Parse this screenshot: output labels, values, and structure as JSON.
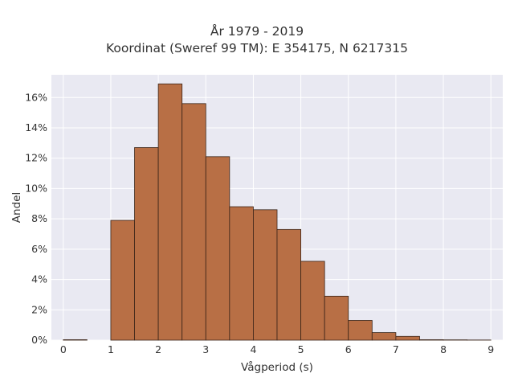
{
  "chart_data": {
    "type": "bar",
    "title": "År 1979 - 2019",
    "subtitle": "Koordinat (Sweref 99 TM): E 354175, N 6217315",
    "xlabel": "Vågperiod (s)",
    "ylabel": "Andel",
    "xlim": [
      -0.25,
      9.25
    ],
    "ylim": [
      0,
      0.175
    ],
    "x_ticks": [
      0,
      1,
      2,
      3,
      4,
      5,
      6,
      7,
      8,
      9
    ],
    "y_ticks": [
      0,
      0.02,
      0.04,
      0.06,
      0.08,
      0.1,
      0.12,
      0.14,
      0.16
    ],
    "y_tick_labels": [
      "0%",
      "2%",
      "4%",
      "6%",
      "8%",
      "10%",
      "12%",
      "14%",
      "16%"
    ],
    "bin_width": 0.5,
    "bins": [
      {
        "x0": 0.0,
        "value": 0.0003
      },
      {
        "x0": 0.5,
        "value": 0.0
      },
      {
        "x0": 1.0,
        "value": 0.079
      },
      {
        "x0": 1.5,
        "value": 0.127
      },
      {
        "x0": 2.0,
        "value": 0.169
      },
      {
        "x0": 2.5,
        "value": 0.156
      },
      {
        "x0": 3.0,
        "value": 0.121
      },
      {
        "x0": 3.5,
        "value": 0.088
      },
      {
        "x0": 4.0,
        "value": 0.086
      },
      {
        "x0": 4.5,
        "value": 0.073
      },
      {
        "x0": 5.0,
        "value": 0.052
      },
      {
        "x0": 5.5,
        "value": 0.029
      },
      {
        "x0": 6.0,
        "value": 0.013
      },
      {
        "x0": 6.5,
        "value": 0.005
      },
      {
        "x0": 7.0,
        "value": 0.0025
      },
      {
        "x0": 7.5,
        "value": 0.0003
      },
      {
        "x0": 8.0,
        "value": 0.0002
      },
      {
        "x0": 8.5,
        "value": 0.0001
      }
    ],
    "grid": true,
    "colors": {
      "bar_fill": "#b86f45",
      "bar_stroke": "#3a2418",
      "plot_background": "#e9e9f2",
      "grid": "#ffffff"
    }
  }
}
